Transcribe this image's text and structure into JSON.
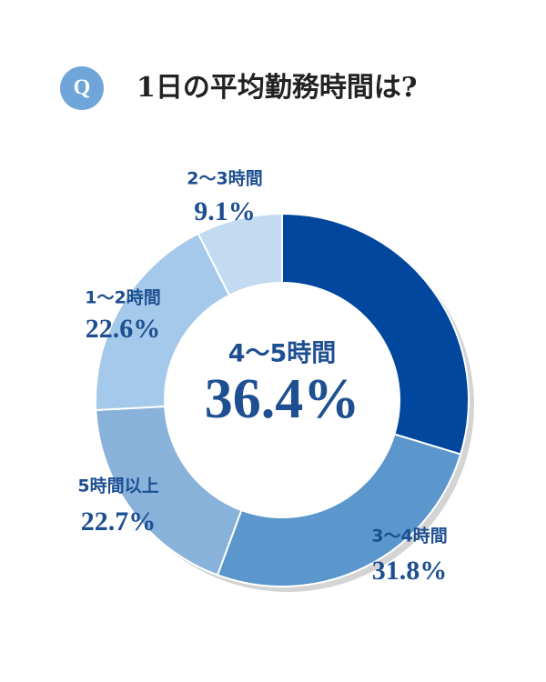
{
  "chart_data": {
    "type": "donut",
    "badge": "Q",
    "title": "1日の平均勤務時間は?",
    "categories": [
      "4～5時間",
      "3～4時間",
      "5時間以上",
      "1～2時間",
      "2～3時間"
    ],
    "values": [
      36.4,
      31.8,
      22.7,
      22.6,
      9.1
    ],
    "value_labels": [
      "36.4%",
      "31.8%",
      "22.7%",
      "22.6%",
      "9.1%"
    ],
    "colors": [
      "#00479d",
      "#5b97cc",
      "#89b2db",
      "#a5c9ea",
      "#c2dbf1"
    ]
  }
}
